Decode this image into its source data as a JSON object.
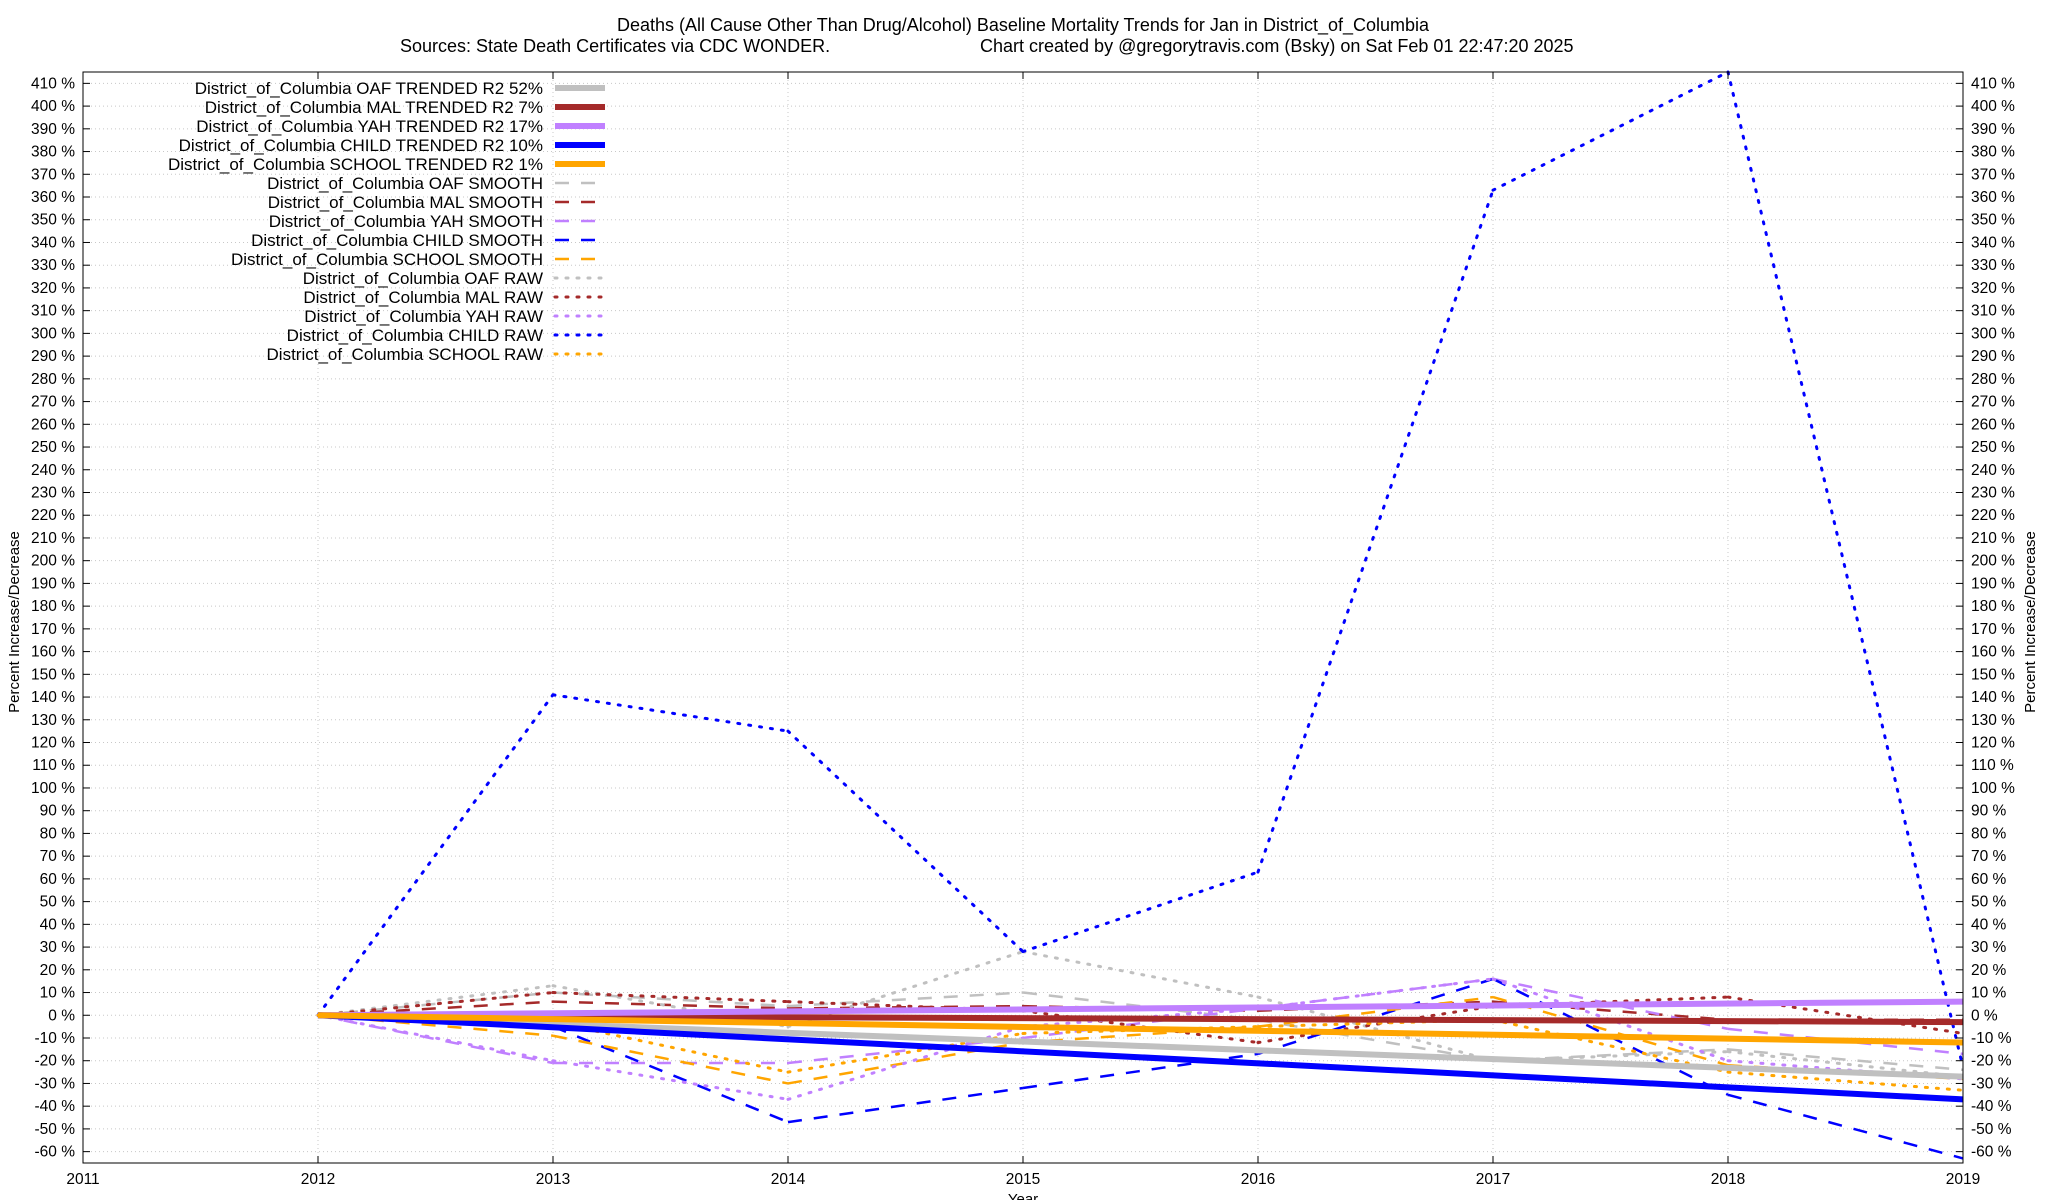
{
  "chart_data": {
    "type": "line",
    "title_line1": "Deaths (All Cause Other Than Drug/Alcohol)  Baseline Mortality Trends for Jan in District_of_Columbia",
    "title_line2_left": "Sources: State Death Certificates via CDC WONDER.",
    "title_line2_right": "Chart created by @gregorytravis.com (Bsky) on Sat Feb 01 22:47:20 2025",
    "xlabel": "Year",
    "ylabel_left": "Percent Increase/Decrease",
    "ylabel_right": "Percent Increase/Decrease",
    "xlim": [
      2011,
      2019
    ],
    "ylim": [
      -65,
      415
    ],
    "x_ticks": [
      2011,
      2012,
      2013,
      2014,
      2015,
      2016,
      2017,
      2018,
      2019
    ],
    "y_ticks": [
      -60,
      -50,
      -40,
      -30,
      -20,
      -10,
      0,
      10,
      20,
      30,
      40,
      50,
      60,
      70,
      80,
      90,
      100,
      110,
      120,
      130,
      140,
      150,
      160,
      170,
      180,
      190,
      200,
      210,
      220,
      230,
      240,
      250,
      260,
      270,
      280,
      290,
      300,
      310,
      320,
      330,
      340,
      350,
      360,
      370,
      380,
      390,
      400,
      410
    ],
    "y_tick_suffix": " %",
    "grid": true,
    "legend_position": "top-left",
    "series": [
      {
        "name": "District_of_Columbia OAF TRENDED R2  52%",
        "style": "trend",
        "color": "#c0c0c0",
        "x": [
          2012,
          2019
        ],
        "y": [
          0,
          -27
        ]
      },
      {
        "name": "District_of_Columbia MAL TRENDED R2   7%",
        "style": "trend",
        "color": "#a52a2a",
        "x": [
          2012,
          2019
        ],
        "y": [
          0,
          -3
        ]
      },
      {
        "name": "District_of_Columbia YAH TRENDED R2  17%",
        "style": "trend",
        "color": "#c080ff",
        "x": [
          2012,
          2019
        ],
        "y": [
          0,
          6
        ]
      },
      {
        "name": "District_of_Columbia CHILD TRENDED R2  10%",
        "style": "trend",
        "color": "#0000ff",
        "x": [
          2012,
          2019
        ],
        "y": [
          0,
          -37
        ]
      },
      {
        "name": "District_of_Columbia SCHOOL TRENDED R2   1%",
        "style": "trend",
        "color": "#ffa500",
        "x": [
          2012,
          2019
        ],
        "y": [
          0,
          -12
        ]
      },
      {
        "name": "District_of_Columbia OAF SMOOTH",
        "style": "smooth",
        "color": "#c0c0c0",
        "x": [
          2012,
          2013,
          2014,
          2015,
          2016,
          2017,
          2018,
          2019
        ],
        "y": [
          0,
          10,
          4,
          10,
          -2,
          -20,
          -15,
          -24
        ]
      },
      {
        "name": "District_of_Columbia MAL SMOOTH",
        "style": "smooth",
        "color": "#a52a2a",
        "x": [
          2012,
          2013,
          2014,
          2015,
          2016,
          2017,
          2018,
          2019
        ],
        "y": [
          0,
          6,
          3,
          4,
          2,
          6,
          -2,
          -2
        ]
      },
      {
        "name": "District_of_Columbia YAH SMOOTH",
        "style": "smooth",
        "color": "#c080ff",
        "x": [
          2012,
          2013,
          2014,
          2015,
          2016,
          2017,
          2018,
          2019
        ],
        "y": [
          0,
          -21,
          -21,
          -10,
          3,
          16,
          -6,
          -17
        ]
      },
      {
        "name": "District_of_Columbia CHILD SMOOTH",
        "style": "smooth",
        "color": "#0000ff",
        "x": [
          2012,
          2013,
          2014,
          2015,
          2016,
          2017,
          2018,
          2019
        ],
        "y": [
          0,
          -5,
          -47,
          -32,
          -17,
          16,
          -35,
          -63
        ]
      },
      {
        "name": "District_of_Columbia SCHOOL SMOOTH",
        "style": "smooth",
        "color": "#ffa500",
        "x": [
          2012,
          2013,
          2014,
          2015,
          2016,
          2017,
          2018,
          2019
        ],
        "y": [
          0,
          -9,
          -30,
          -12,
          -5,
          8,
          -22,
          -28
        ]
      },
      {
        "name": "District_of_Columbia OAF RAW",
        "style": "raw",
        "color": "#c0c0c0",
        "x": [
          2012,
          2013,
          2014,
          2015,
          2016,
          2017,
          2018,
          2019
        ],
        "y": [
          0,
          13,
          -5,
          28,
          8,
          -20,
          -16,
          -27
        ]
      },
      {
        "name": "District_of_Columbia MAL RAW",
        "style": "raw",
        "color": "#a52a2a",
        "x": [
          2012,
          2013,
          2014,
          2015,
          2016,
          2017,
          2018,
          2019
        ],
        "y": [
          0,
          10,
          6,
          2,
          -12,
          4,
          8,
          -8
        ]
      },
      {
        "name": "District_of_Columbia YAH RAW",
        "style": "raw",
        "color": "#c080ff",
        "x": [
          2012,
          2013,
          2014,
          2015,
          2016,
          2017,
          2018,
          2019
        ],
        "y": [
          0,
          -20,
          -37,
          -5,
          3,
          16,
          -20,
          -28
        ]
      },
      {
        "name": "District_of_Columbia CHILD RAW",
        "style": "raw",
        "color": "#0000ff",
        "x": [
          2012,
          2013,
          2014,
          2015,
          2016,
          2017,
          2018,
          2019
        ],
        "y": [
          0,
          141,
          125,
          28,
          63,
          363,
          415,
          -23
        ]
      },
      {
        "name": "District_of_Columbia SCHOOL RAW",
        "style": "raw",
        "color": "#ffa500",
        "x": [
          2012,
          2013,
          2014,
          2015,
          2016,
          2017,
          2018,
          2019
        ],
        "y": [
          0,
          -3,
          -25,
          -8,
          -5,
          -2,
          -25,
          -33
        ]
      }
    ]
  }
}
